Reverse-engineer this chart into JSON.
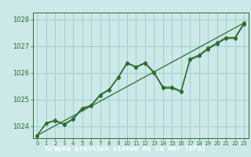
{
  "xlabel": "Graphe pression niveau de la mer (hPa)",
  "background_color": "#cce8e8",
  "grid_color": "#99cccc",
  "line_color": "#2d6e2d",
  "label_bg_color": "#336633",
  "label_text_color": "#ffffff",
  "xlim": [
    -0.5,
    23.5
  ],
  "ylim": [
    1023.55,
    1028.25
  ],
  "yticks": [
    1024,
    1025,
    1026,
    1027,
    1028
  ],
  "xticks": [
    0,
    1,
    2,
    3,
    4,
    5,
    6,
    7,
    8,
    9,
    10,
    11,
    12,
    13,
    14,
    15,
    16,
    17,
    18,
    19,
    20,
    21,
    22,
    23
  ],
  "series1_x": [
    0,
    1,
    2,
    3,
    4,
    5,
    6,
    7,
    8,
    9,
    10,
    11,
    12,
    13,
    14,
    15,
    16,
    17,
    18,
    19,
    20,
    21,
    22,
    23
  ],
  "series1_y": [
    1023.65,
    1024.1,
    1024.2,
    1024.05,
    1024.25,
    1024.65,
    1024.75,
    1025.15,
    1025.35,
    1025.8,
    1026.35,
    1026.2,
    1026.35,
    1025.98,
    1025.42,
    1025.42,
    1025.28,
    1026.48,
    1026.62,
    1026.88,
    1027.08,
    1027.28,
    1027.28,
    1027.82
  ],
  "series2_x": [
    0,
    1,
    2,
    3,
    4,
    5,
    6,
    7,
    8,
    9,
    10,
    11,
    12,
    13,
    14,
    15,
    16,
    17,
    18,
    19,
    20,
    21,
    22,
    23
  ],
  "series2_y": [
    1023.65,
    1024.12,
    1024.22,
    1024.08,
    1024.28,
    1024.68,
    1024.78,
    1025.18,
    1025.38,
    1025.83,
    1026.38,
    1026.22,
    1026.38,
    1026.02,
    1025.46,
    1025.46,
    1025.32,
    1026.52,
    1026.66,
    1026.92,
    1027.12,
    1027.32,
    1027.32,
    1027.86
  ],
  "trend_x": [
    0,
    23
  ],
  "trend_y": [
    1023.65,
    1027.86
  ]
}
